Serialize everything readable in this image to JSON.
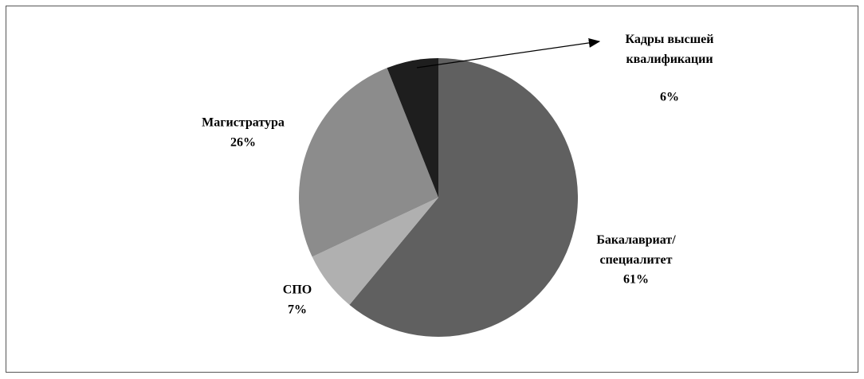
{
  "chart_data": {
    "type": "pie",
    "categories": [
      "Бакалавриат/\nспециалитет",
      "СПО",
      "Магистратура",
      "Кадры высшей\nквалификации"
    ],
    "values": [
      61,
      7,
      26,
      6
    ],
    "value_labels": [
      "61%",
      "7%",
      "26%",
      "6%"
    ],
    "colors": [
      "#606060",
      "#b0b0b0",
      "#8c8c8c",
      "#1e1e1e"
    ]
  }
}
